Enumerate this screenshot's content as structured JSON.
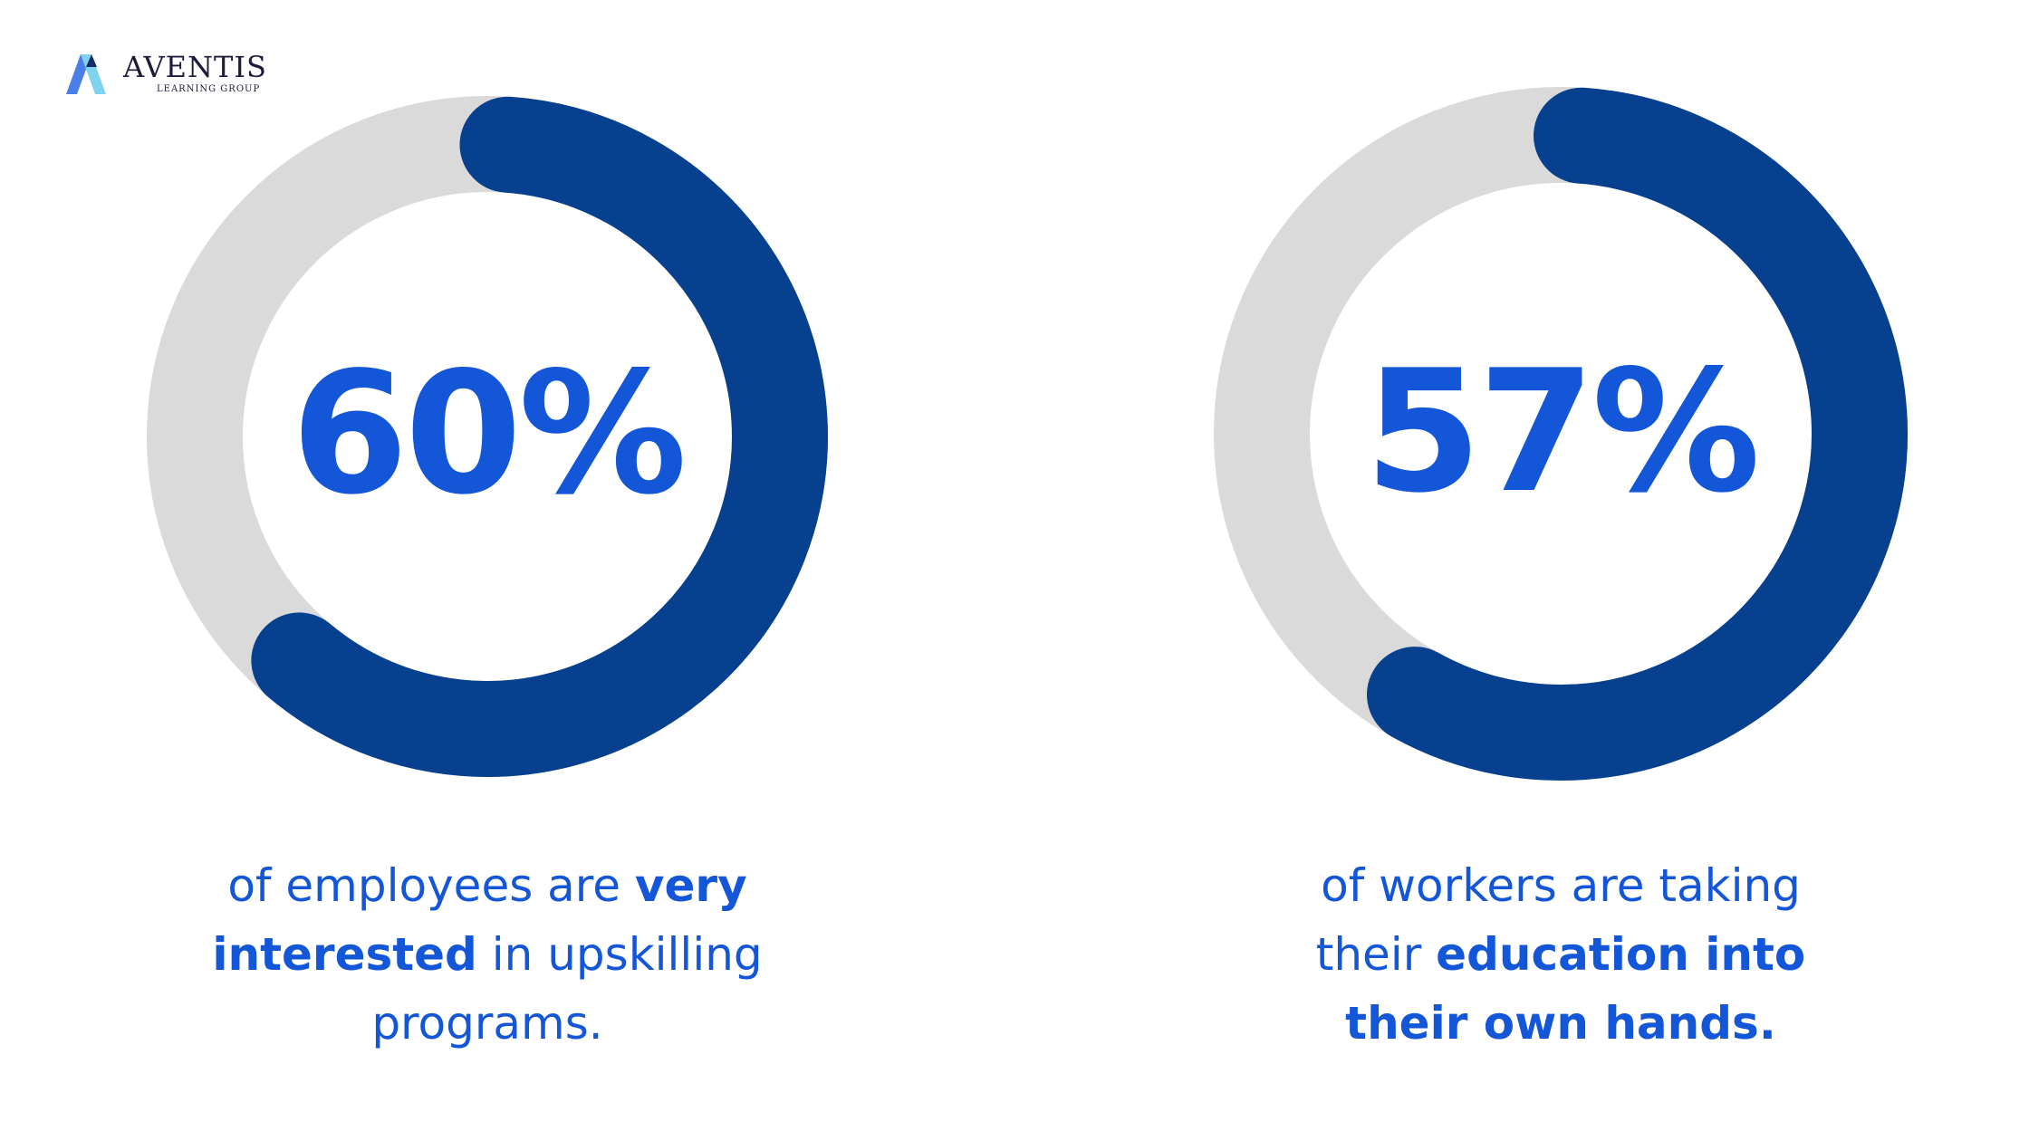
{
  "logo": {
    "name": "AVENTIS",
    "subtitle": "LEARNING GROUP",
    "icon": "aventis-logo-mark"
  },
  "colors": {
    "arc": "#06408f",
    "track": "#dadada",
    "text": "#1456d8",
    "background": "#ffffff"
  },
  "chart_data": [
    {
      "type": "pie",
      "style": "donut",
      "value": 60,
      "label": "60%",
      "caption": {
        "line1_plain": "of employees are ",
        "line1_bold": "very",
        "line2_bold": "interested",
        "line2_plain": " in upskilling",
        "line3_plain": "programs."
      }
    },
    {
      "type": "pie",
      "style": "donut",
      "value": 57,
      "label": "57%",
      "caption": {
        "line1_plain": "of workers are taking",
        "line2_plain": "their ",
        "line2_bold": "education into",
        "line3_bold": "their own hands."
      }
    }
  ]
}
